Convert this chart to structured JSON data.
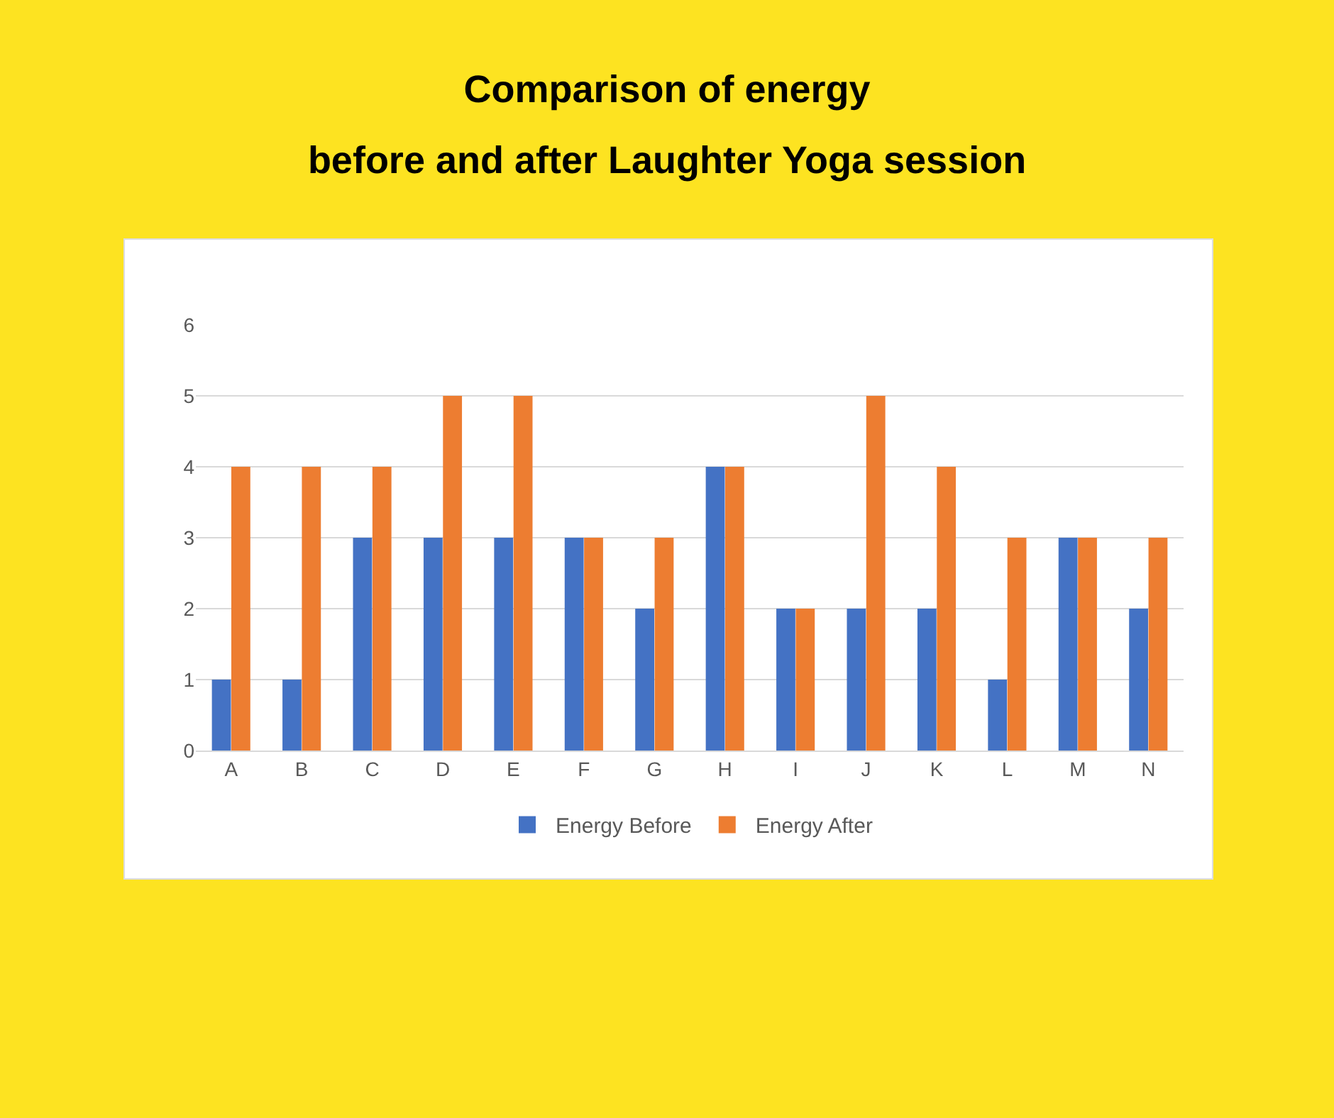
{
  "chart_data": {
    "type": "bar",
    "title": "Comparison of energy\nbefore and after Laughter Yoga session",
    "categories": [
      "A",
      "B",
      "C",
      "D",
      "E",
      "F",
      "G",
      "H",
      "I",
      "J",
      "K",
      "L",
      "M",
      "N"
    ],
    "series": [
      {
        "name": "Energy Before",
        "color": "#4472c4",
        "values": [
          1,
          1,
          3,
          3,
          3,
          3,
          2,
          4,
          2,
          2,
          2,
          1,
          3,
          2
        ]
      },
      {
        "name": "Energy After",
        "color": "#ed7d31",
        "values": [
          4,
          4,
          4,
          5,
          5,
          3,
          3,
          4,
          2,
          5,
          4,
          3,
          3,
          3
        ]
      }
    ],
    "ylim": [
      0,
      6
    ],
    "yticks": [
      0,
      1,
      2,
      3,
      4,
      5,
      6
    ],
    "grid": "y",
    "legend": "bottom"
  }
}
